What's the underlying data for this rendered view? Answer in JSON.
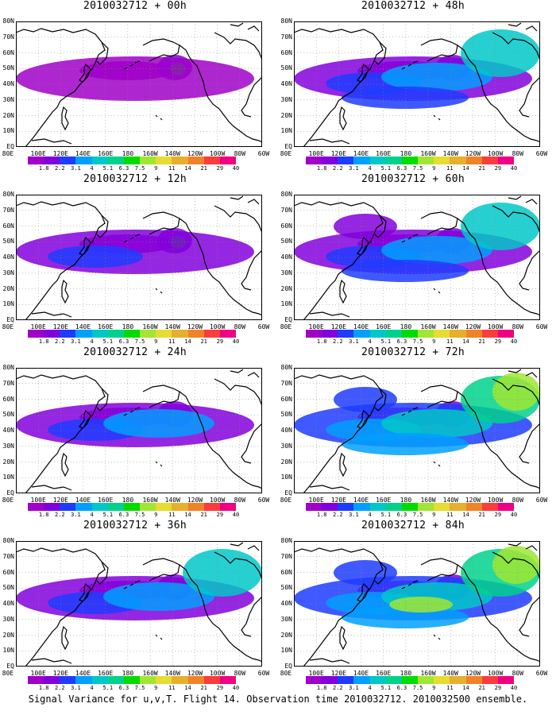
{
  "panels": [
    {
      "title": "2010032712 + 00h",
      "intensity": 0.15
    },
    {
      "title": "2010032712 + 48h",
      "intensity": 0.55
    },
    {
      "title": "2010032712 + 12h",
      "intensity": 0.25
    },
    {
      "title": "2010032712 + 60h",
      "intensity": 0.65
    },
    {
      "title": "2010032712 + 24h",
      "intensity": 0.35
    },
    {
      "title": "2010032712 + 72h",
      "intensity": 0.75
    },
    {
      "title": "2010032712 + 36h",
      "intensity": 0.45
    },
    {
      "title": "2010032712 + 84h",
      "intensity": 0.85
    }
  ],
  "lat_labels": [
    "80N",
    "70N",
    "60N",
    "50N",
    "40N",
    "30N",
    "20N",
    "10N",
    "EQ"
  ],
  "lon_labels": [
    "80E",
    "100E",
    "120E",
    "140E",
    "160E",
    "180",
    "160W",
    "140W",
    "120W",
    "100W",
    "80W",
    "60W"
  ],
  "colorbar": {
    "labels": [
      "1.8",
      "2.2",
      "3.1",
      "4",
      "5.1",
      "6.3",
      "7.5",
      "9",
      "11",
      "14",
      "21",
      "29",
      "40"
    ],
    "colors": [
      "#ffffff",
      "#a000c8",
      "#8200dc",
      "#1e3cff",
      "#00a0ff",
      "#00c8c8",
      "#00d28c",
      "#00dc00",
      "#a0e632",
      "#e6dc32",
      "#e6af2d",
      "#f08228",
      "#fa3c3c",
      "#f00082"
    ]
  },
  "caption": "Signal Variance for u,v,T. Flight 14. Observation time 2010032712. 2010032500 ensemble."
}
